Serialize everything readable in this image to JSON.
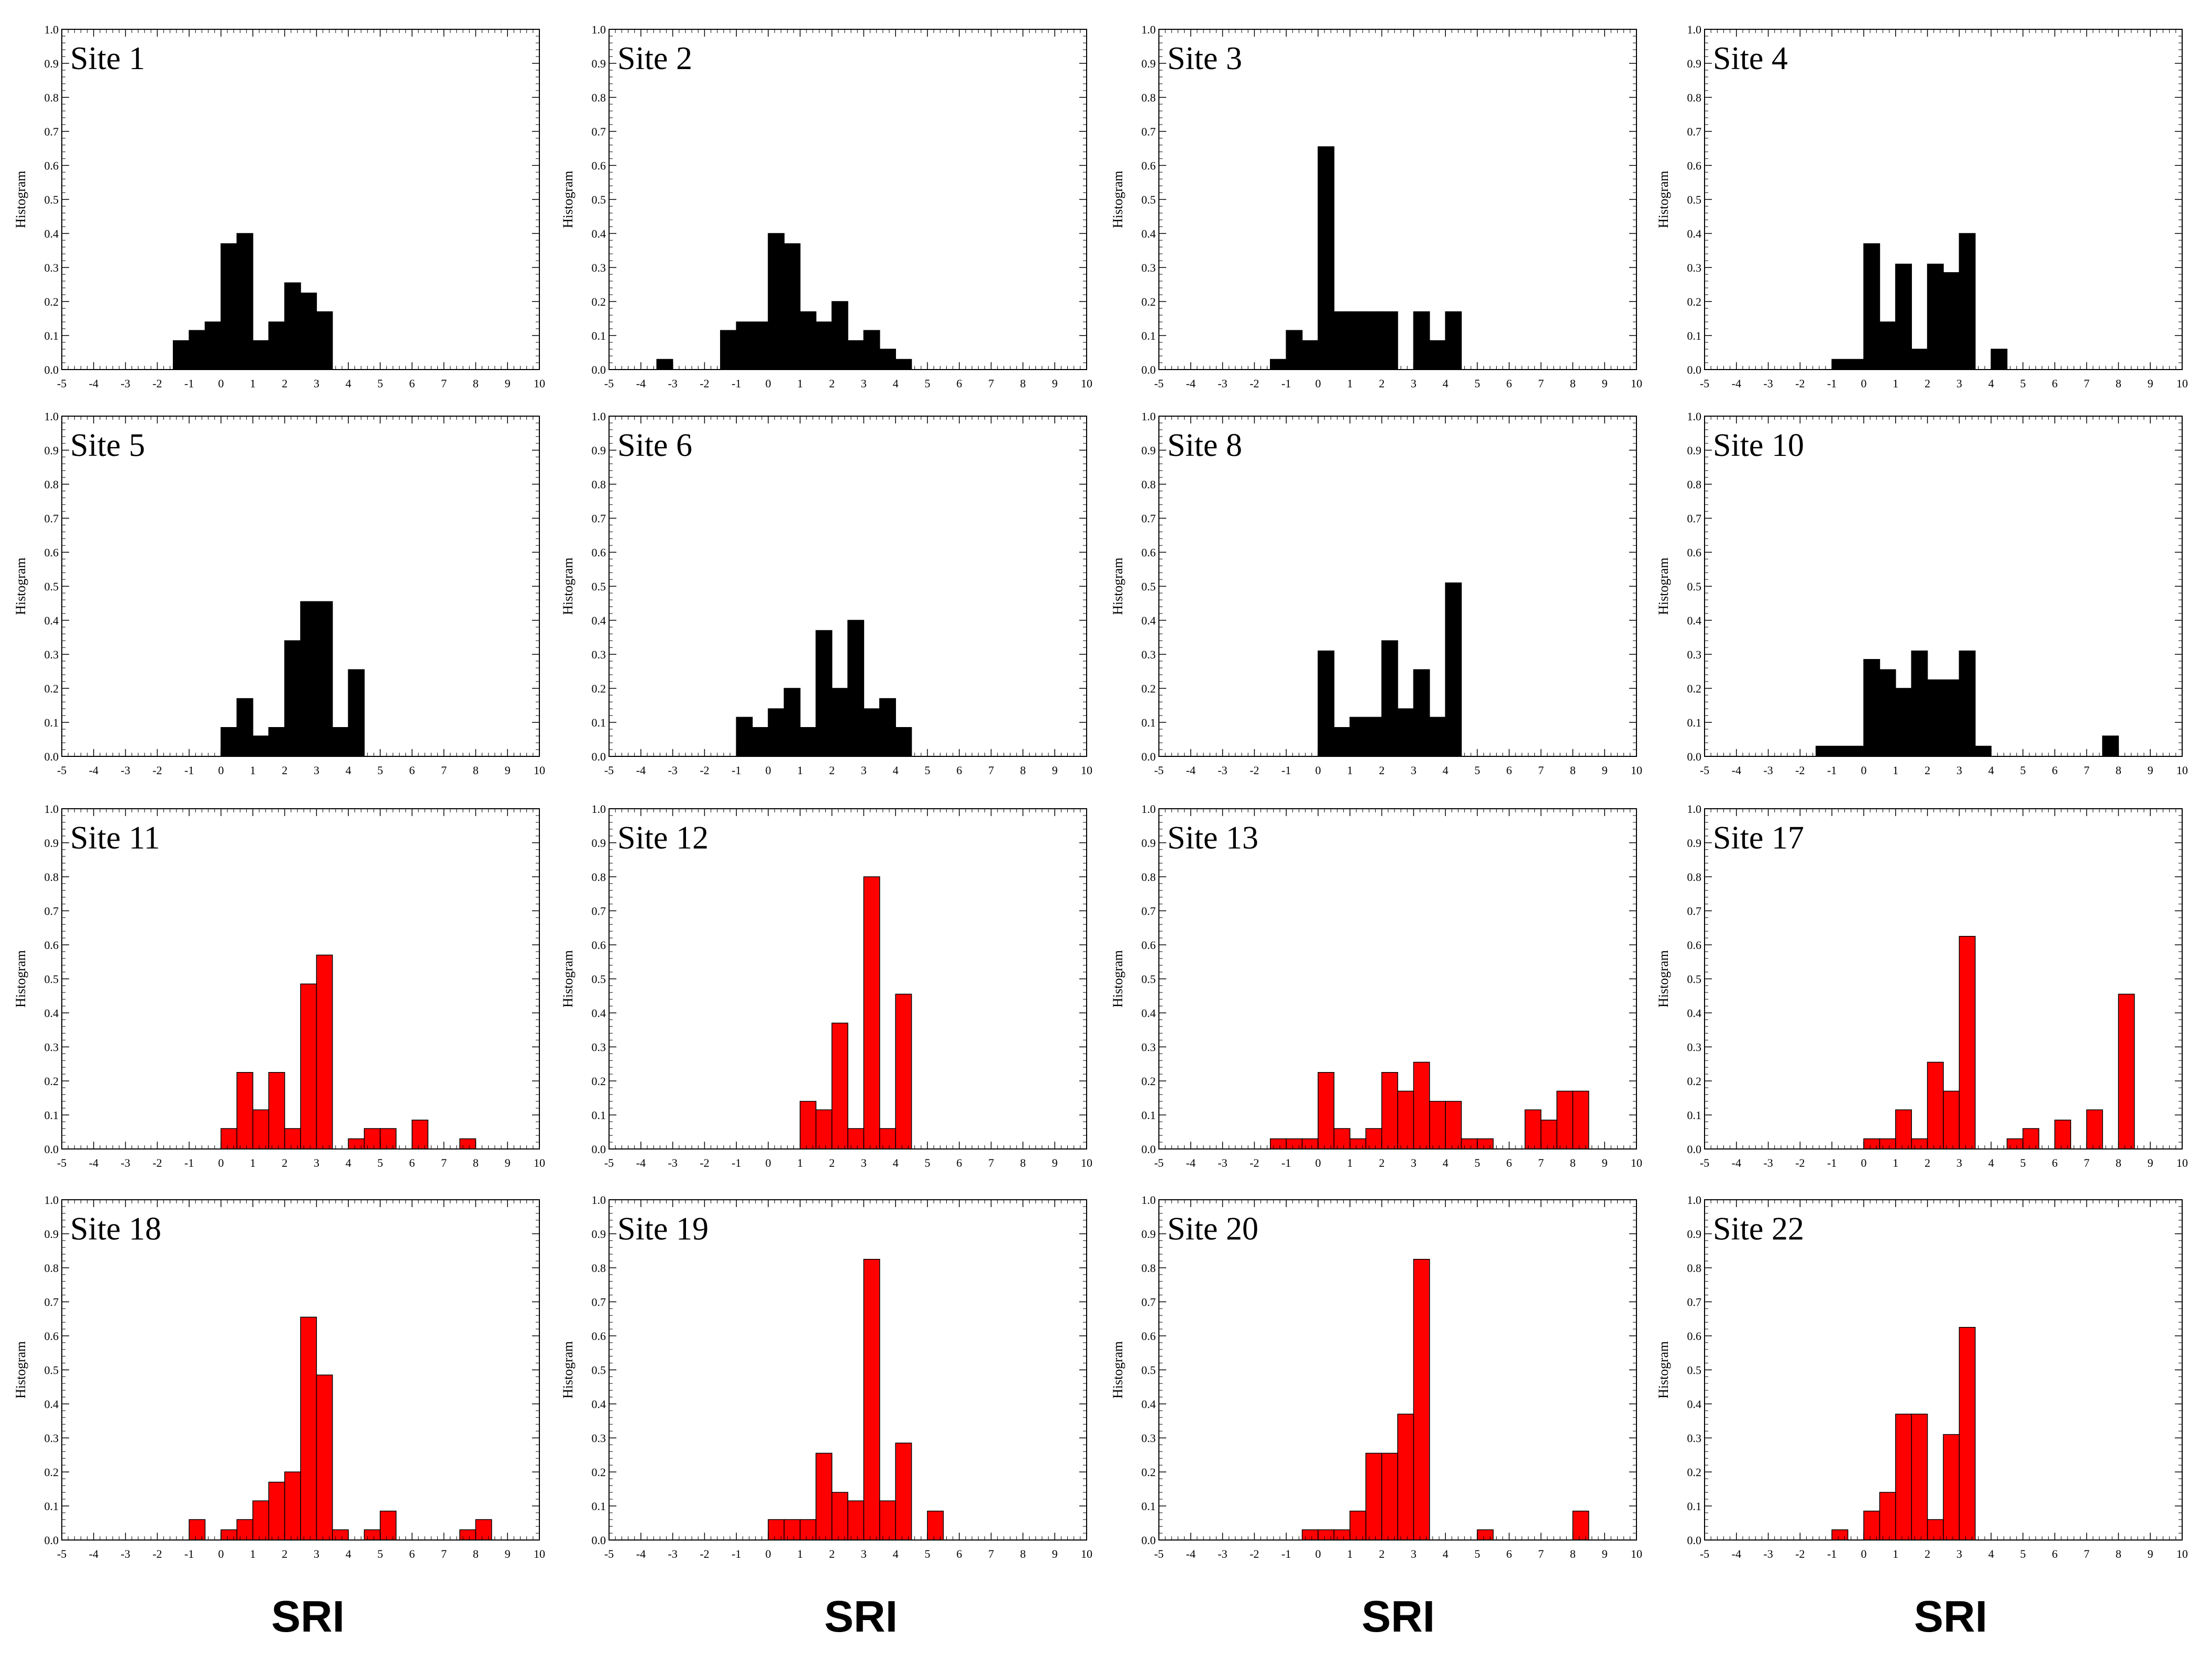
{
  "figure": {
    "x_axis_label": "SRI",
    "y_axis_label": "Histogram",
    "x_ticks": [
      "-5",
      "-4",
      "-3",
      "-2",
      "-1",
      "0",
      "1",
      "2",
      "3",
      "4",
      "5",
      "6",
      "7",
      "8",
      "9",
      "10"
    ],
    "y_ticks": [
      "0.0",
      "0.1",
      "0.2",
      "0.3",
      "0.4",
      "0.5",
      "0.6",
      "0.7",
      "0.8",
      "0.9",
      "1.0"
    ],
    "colors": {
      "group_a": "#000000",
      "group_b": "#ff0000"
    }
  },
  "chart_data": [
    {
      "type": "bar",
      "title": "Site 1",
      "color": "#000000",
      "xlabel": "SRI",
      "ylabel": "Histogram",
      "xlim": [
        -5,
        10
      ],
      "ylim": [
        0,
        1
      ],
      "bin_width": 0.5,
      "x": [
        -1.5,
        -1,
        -0.5,
        0,
        0.5,
        1,
        1.5,
        2,
        2.5,
        3
      ],
      "values": [
        0.085,
        0.115,
        0.14,
        0.37,
        0.4,
        0.085,
        0.14,
        0.255,
        0.225,
        0.17
      ]
    },
    {
      "type": "bar",
      "title": "Site 2",
      "color": "#000000",
      "xlabel": "SRI",
      "ylabel": "Histogram",
      "xlim": [
        -5,
        10
      ],
      "ylim": [
        0,
        1
      ],
      "bin_width": 0.5,
      "x": [
        -3.5,
        -1.5,
        -1,
        -0.5,
        0,
        0.5,
        1,
        1.5,
        2,
        2.5,
        3,
        3.5,
        4
      ],
      "values": [
        0.03,
        0.115,
        0.14,
        0.14,
        0.4,
        0.37,
        0.17,
        0.14,
        0.2,
        0.085,
        0.115,
        0.06,
        0.03
      ]
    },
    {
      "type": "bar",
      "title": "Site 3",
      "color": "#000000",
      "xlabel": "SRI",
      "ylabel": "Histogram",
      "xlim": [
        -5,
        10
      ],
      "ylim": [
        0,
        1
      ],
      "bin_width": 0.5,
      "x": [
        -1.5,
        -1,
        -0.5,
        0,
        0.5,
        1,
        1.5,
        2,
        3,
        3.5,
        4
      ],
      "values": [
        0.03,
        0.115,
        0.085,
        0.655,
        0.17,
        0.17,
        0.17,
        0.17,
        0.17,
        0.085,
        0.17
      ]
    },
    {
      "type": "bar",
      "title": "Site 4",
      "color": "#000000",
      "xlabel": "SRI",
      "ylabel": "Histogram",
      "xlim": [
        -5,
        10
      ],
      "ylim": [
        0,
        1
      ],
      "bin_width": 0.5,
      "x": [
        -1,
        -0.5,
        0,
        0.5,
        1,
        1.5,
        2,
        2.5,
        3,
        4
      ],
      "values": [
        0.03,
        0.03,
        0.37,
        0.14,
        0.31,
        0.06,
        0.31,
        0.285,
        0.4,
        0.06
      ]
    },
    {
      "type": "bar",
      "title": "Site 5",
      "color": "#000000",
      "xlabel": "SRI",
      "ylabel": "Histogram",
      "xlim": [
        -5,
        10
      ],
      "ylim": [
        0,
        1
      ],
      "bin_width": 0.5,
      "x": [
        0,
        0.5,
        1,
        1.5,
        2,
        2.5,
        3,
        3.5,
        4
      ],
      "values": [
        0.085,
        0.17,
        0.06,
        0.085,
        0.34,
        0.455,
        0.455,
        0.085,
        0.255
      ]
    },
    {
      "type": "bar",
      "title": "Site 6",
      "color": "#000000",
      "xlabel": "SRI",
      "ylabel": "Histogram",
      "xlim": [
        -5,
        10
      ],
      "ylim": [
        0,
        1
      ],
      "bin_width": 0.5,
      "x": [
        -1,
        -0.5,
        0,
        0.5,
        1,
        1.5,
        2,
        2.5,
        3,
        3.5,
        4
      ],
      "values": [
        0.115,
        0.085,
        0.14,
        0.2,
        0.085,
        0.37,
        0.2,
        0.4,
        0.14,
        0.17,
        0.085
      ]
    },
    {
      "type": "bar",
      "title": "Site 8",
      "color": "#000000",
      "xlabel": "SRI",
      "ylabel": "Histogram",
      "xlim": [
        -5,
        10
      ],
      "ylim": [
        0,
        1
      ],
      "bin_width": 0.5,
      "x": [
        0,
        0.5,
        1,
        1.5,
        2,
        2.5,
        3,
        3.5,
        4
      ],
      "values": [
        0.31,
        0.085,
        0.115,
        0.115,
        0.34,
        0.14,
        0.255,
        0.115,
        0.51
      ]
    },
    {
      "type": "bar",
      "title": "Site 10",
      "color": "#000000",
      "xlabel": "SRI",
      "ylabel": "Histogram",
      "xlim": [
        -5,
        10
      ],
      "ylim": [
        0,
        1
      ],
      "bin_width": 0.5,
      "x": [
        -1.5,
        -1,
        -0.5,
        0,
        0.5,
        1,
        1.5,
        2,
        2.5,
        3,
        3.5,
        7.5
      ],
      "values": [
        0.03,
        0.03,
        0.03,
        0.285,
        0.255,
        0.2,
        0.31,
        0.225,
        0.225,
        0.31,
        0.03,
        0.06
      ]
    },
    {
      "type": "bar",
      "title": "Site 11",
      "color": "#ff0000",
      "xlabel": "SRI",
      "ylabel": "Histogram",
      "xlim": [
        -5,
        10
      ],
      "ylim": [
        0,
        1
      ],
      "bin_width": 0.5,
      "x": [
        0,
        0.5,
        1,
        1.5,
        2,
        2.5,
        3,
        4,
        4.5,
        5,
        6,
        7.5
      ],
      "values": [
        0.06,
        0.225,
        0.115,
        0.225,
        0.06,
        0.485,
        0.57,
        0.03,
        0.06,
        0.06,
        0.085,
        0.03
      ]
    },
    {
      "type": "bar",
      "title": "Site 12",
      "color": "#ff0000",
      "xlabel": "SRI",
      "ylabel": "Histogram",
      "xlim": [
        -5,
        10
      ],
      "ylim": [
        0,
        1
      ],
      "bin_width": 0.5,
      "x": [
        1,
        1.5,
        2,
        2.5,
        3,
        3.5,
        4
      ],
      "values": [
        0.14,
        0.115,
        0.37,
        0.06,
        0.8,
        0.06,
        0.455
      ]
    },
    {
      "type": "bar",
      "title": "Site 13",
      "color": "#ff0000",
      "xlabel": "SRI",
      "ylabel": "Histogram",
      "xlim": [
        -5,
        10
      ],
      "ylim": [
        0,
        1
      ],
      "bin_width": 0.5,
      "x": [
        -1.5,
        -1,
        -0.5,
        0,
        0.5,
        1,
        1.5,
        2,
        2.5,
        3,
        3.5,
        4,
        4.5,
        5,
        6.5,
        7,
        7.5,
        8
      ],
      "values": [
        0.03,
        0.03,
        0.03,
        0.225,
        0.06,
        0.03,
        0.06,
        0.225,
        0.17,
        0.255,
        0.14,
        0.14,
        0.03,
        0.03,
        0.115,
        0.085,
        0.17,
        0.17
      ]
    },
    {
      "type": "bar",
      "title": "Site 17",
      "color": "#ff0000",
      "xlabel": "SRI",
      "ylabel": "Histogram",
      "xlim": [
        -5,
        10
      ],
      "ylim": [
        0,
        1
      ],
      "bin_width": 0.5,
      "x": [
        0,
        0.5,
        1,
        1.5,
        2,
        2.5,
        3,
        4.5,
        5,
        6,
        7,
        8
      ],
      "values": [
        0.03,
        0.03,
        0.115,
        0.03,
        0.255,
        0.17,
        0.625,
        0.03,
        0.06,
        0.085,
        0.115,
        0.455
      ]
    },
    {
      "type": "bar",
      "title": "Site 18",
      "color": "#ff0000",
      "xlabel": "SRI",
      "ylabel": "Histogram",
      "xlim": [
        -5,
        10
      ],
      "ylim": [
        0,
        1
      ],
      "bin_width": 0.5,
      "x": [
        -1,
        0,
        0.5,
        1,
        1.5,
        2,
        2.5,
        3,
        3.5,
        4.5,
        5,
        7.5,
        8
      ],
      "values": [
        0.06,
        0.03,
        0.06,
        0.115,
        0.17,
        0.2,
        0.655,
        0.485,
        0.03,
        0.03,
        0.085,
        0.03,
        0.06
      ]
    },
    {
      "type": "bar",
      "title": "Site 19",
      "color": "#ff0000",
      "xlabel": "SRI",
      "ylabel": "Histogram",
      "xlim": [
        -5,
        10
      ],
      "ylim": [
        0,
        1
      ],
      "bin_width": 0.5,
      "x": [
        0,
        0.5,
        1,
        1.5,
        2,
        2.5,
        3,
        3.5,
        4,
        5
      ],
      "values": [
        0.06,
        0.06,
        0.06,
        0.255,
        0.14,
        0.115,
        0.825,
        0.115,
        0.285,
        0.085
      ]
    },
    {
      "type": "bar",
      "title": "Site 20",
      "color": "#ff0000",
      "xlabel": "SRI",
      "ylabel": "Histogram",
      "xlim": [
        -5,
        10
      ],
      "ylim": [
        0,
        1
      ],
      "bin_width": 0.5,
      "x": [
        -0.5,
        0,
        0.5,
        1,
        1.5,
        2,
        2.5,
        3,
        5,
        8
      ],
      "values": [
        0.03,
        0.03,
        0.03,
        0.085,
        0.255,
        0.255,
        0.37,
        0.825,
        0.03,
        0.085
      ]
    },
    {
      "type": "bar",
      "title": "Site 22",
      "color": "#ff0000",
      "xlabel": "SRI",
      "ylabel": "Histogram",
      "xlim": [
        -5,
        10
      ],
      "ylim": [
        0,
        1
      ],
      "bin_width": 0.5,
      "x": [
        -1,
        0,
        0.5,
        1,
        1.5,
        2,
        2.5,
        3
      ],
      "values": [
        0.03,
        0.085,
        0.14,
        0.37,
        0.37,
        0.06,
        0.31,
        0.625
      ]
    }
  ]
}
